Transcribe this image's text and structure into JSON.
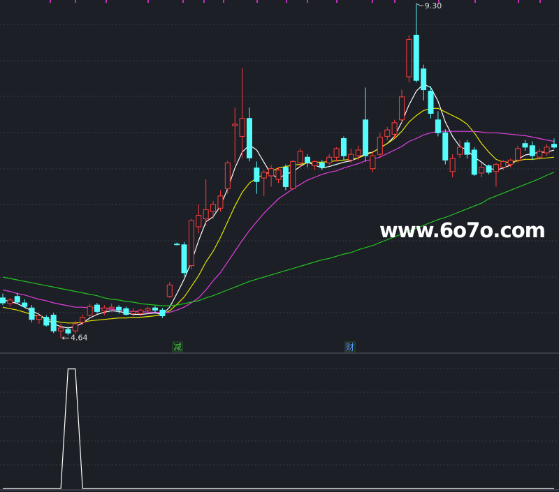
{
  "chart_data": [
    {
      "type": "candlestick",
      "watermark": "www.6o7o.com",
      "up_color": "#ff3c3c",
      "down_color": "#54fcfc",
      "ylim": [
        4.44,
        9.35
      ],
      "high_label": {
        "value": 9.3,
        "label": "9.30"
      },
      "low_label": 4.64,
      "signals": [
        {
          "label": "减",
          "color": "#3ccc3c"
        },
        {
          "label": "财",
          "color": "#5aa0ff"
        }
      ],
      "open": [
        5.2,
        5.12,
        5.22,
        5.13,
        5.06,
        4.9,
        4.93,
        4.96,
        4.74,
        4.76,
        4.74,
        4.86,
        4.96,
        5.1,
        5.02,
        5.05,
        5.07,
        5.05,
        4.98,
        4.98,
        5.03,
        5.06,
        5.03,
        5.22,
        5.95,
        5.94,
        5.65,
        6.19,
        6.3,
        6.4,
        6.45,
        6.72,
        7.6,
        7.45,
        7.7,
        7.01,
        6.87,
        6.9,
        6.85,
        7.02,
        6.72,
        7.08,
        7.16,
        7.04,
        7.08,
        7.08,
        7.16,
        7.42,
        7.12,
        7.18,
        7.68,
        7.0,
        7.2,
        7.45,
        7.48,
        7.68,
        8.28,
        8.86,
        8.39,
        8.08,
        7.68,
        7.5,
        6.96,
        7.2,
        7.36,
        7.26,
        6.94,
        7.04,
        6.96,
        7.02,
        7.06,
        7.12,
        7.35,
        7.32,
        7.16,
        7.22,
        7.34
      ],
      "high": [
        5.26,
        5.2,
        5.27,
        5.18,
        5.1,
        4.97,
        4.96,
        4.99,
        4.84,
        4.8,
        4.88,
        4.97,
        5.12,
        5.13,
        5.1,
        5.12,
        5.1,
        5.08,
        5.06,
        5.05,
        5.08,
        5.09,
        5.06,
        5.42,
        5.97,
        5.98,
        6.3,
        6.5,
        6.85,
        6.55,
        6.7,
        7.11,
        7.85,
        8.4,
        7.85,
        7.1,
        6.98,
        7.05,
        7.02,
        7.06,
        7.12,
        7.28,
        7.2,
        7.12,
        7.12,
        7.2,
        7.3,
        7.45,
        7.28,
        7.32,
        8.13,
        7.24,
        7.5,
        7.58,
        7.68,
        8.1,
        8.86,
        9.3,
        8.45,
        8.15,
        7.8,
        7.55,
        7.2,
        7.4,
        7.4,
        7.3,
        7.08,
        7.06,
        7.08,
        7.12,
        7.14,
        7.32,
        7.4,
        7.38,
        7.28,
        7.34,
        7.42
      ],
      "low": [
        5.1,
        5.08,
        5.12,
        5.06,
        4.86,
        4.84,
        4.8,
        4.71,
        4.64,
        4.68,
        4.7,
        4.82,
        4.92,
        4.98,
        4.96,
        5.0,
        4.98,
        4.95,
        4.94,
        4.94,
        4.98,
        4.98,
        4.92,
        5.2,
        5.93,
        5.5,
        5.6,
        6.1,
        6.2,
        6.3,
        6.4,
        6.65,
        7.08,
        7.15,
        7.1,
        6.65,
        6.62,
        6.75,
        6.8,
        6.7,
        6.7,
        7.02,
        7.02,
        6.98,
        6.98,
        7.05,
        7.1,
        7.12,
        7.08,
        7.12,
        7.1,
        6.95,
        7.15,
        7.4,
        7.42,
        7.62,
        8.2,
        8.2,
        7.95,
        7.7,
        7.45,
        7.06,
        6.88,
        7.15,
        7.14,
        6.9,
        6.88,
        6.92,
        6.75,
        6.98,
        7.02,
        7.08,
        7.25,
        7.12,
        7.12,
        7.18,
        7.28
      ],
      "close": [
        5.13,
        5.17,
        5.14,
        5.08,
        4.9,
        4.95,
        4.82,
        4.74,
        4.78,
        4.71,
        4.84,
        4.93,
        5.08,
        5.01,
        5.06,
        5.07,
        5.03,
        4.97,
        5.01,
        5.03,
        5.05,
        5.03,
        4.95,
        5.38,
        5.94,
        5.55,
        6.28,
        6.35,
        6.43,
        6.5,
        6.62,
        7.08,
        7.62,
        7.7,
        7.15,
        6.82,
        6.95,
        7.0,
        6.98,
        6.75,
        7.1,
        7.24,
        7.08,
        7.1,
        7.02,
        7.16,
        7.28,
        7.18,
        7.2,
        7.26,
        7.18,
        7.18,
        7.44,
        7.54,
        7.64,
        8.0,
        8.8,
        8.23,
        8.1,
        7.77,
        7.5,
        7.12,
        7.14,
        7.3,
        7.2,
        6.92,
        7.02,
        6.95,
        7.06,
        7.1,
        7.12,
        7.28,
        7.3,
        7.18,
        7.24,
        7.3,
        7.3
      ],
      "series": [
        {
          "color": "#ffffff",
          "values": [
            5.17,
            5.15,
            5.12,
            5.07,
            5.02,
            4.97,
            4.9,
            4.84,
            4.8,
            4.78,
            4.8,
            4.85,
            4.92,
            4.97,
            5.0,
            5.02,
            5.01,
            4.99,
            4.97,
            4.97,
            4.98,
            4.99,
            4.97,
            5.07,
            5.26,
            5.46,
            5.7,
            6.0,
            6.26,
            6.33,
            6.48,
            6.72,
            7.01,
            7.23,
            7.33,
            7.26,
            7.09,
            6.92,
            6.87,
            6.92,
            6.96,
            7.03,
            7.09,
            7.05,
            7.01,
            7.03,
            7.06,
            7.09,
            7.11,
            7.15,
            7.21,
            7.23,
            7.29,
            7.35,
            7.45,
            7.65,
            7.89,
            8.08,
            8.18,
            8.13,
            7.94,
            7.65,
            7.45,
            7.31,
            7.26,
            7.16,
            7.09,
            7.01,
            6.98,
            7.01,
            7.05,
            7.13,
            7.19,
            7.21,
            7.23,
            7.23,
            7.26
          ]
        },
        {
          "color": "#e6e600",
          "values": [
            5.07,
            5.05,
            5.03,
            5.0,
            4.97,
            4.94,
            4.91,
            4.88,
            4.86,
            4.85,
            4.85,
            4.86,
            4.88,
            4.89,
            4.9,
            4.91,
            4.92,
            4.92,
            4.93,
            4.93,
            4.94,
            4.95,
            4.97,
            5.02,
            5.11,
            5.21,
            5.36,
            5.51,
            5.7,
            5.85,
            6.04,
            6.26,
            6.48,
            6.67,
            6.8,
            6.87,
            6.92,
            6.96,
            7.01,
            7.03,
            7.05,
            7.06,
            7.08,
            7.09,
            7.09,
            7.1,
            7.11,
            7.12,
            7.13,
            7.15,
            7.19,
            7.23,
            7.29,
            7.35,
            7.42,
            7.52,
            7.65,
            7.74,
            7.81,
            7.84,
            7.84,
            7.79,
            7.74,
            7.69,
            7.62,
            7.5,
            7.35,
            7.23,
            7.13,
            7.09,
            7.09,
            7.11,
            7.13,
            7.13,
            7.14,
            7.15,
            7.16
          ]
        },
        {
          "color": "#e040e0",
          "values": [
            5.31,
            5.29,
            5.26,
            5.24,
            5.21,
            5.18,
            5.16,
            5.13,
            5.11,
            5.09,
            5.07,
            5.07,
            5.06,
            5.06,
            5.05,
            5.04,
            5.03,
            5.02,
            5.01,
            5.01,
            5.0,
            5.0,
            4.99,
            5.0,
            5.03,
            5.07,
            5.13,
            5.2,
            5.31,
            5.44,
            5.55,
            5.7,
            5.85,
            6.0,
            6.14,
            6.26,
            6.38,
            6.48,
            6.58,
            6.65,
            6.72,
            6.78,
            6.84,
            6.88,
            6.92,
            6.95,
            6.97,
            7.01,
            7.04,
            7.07,
            7.11,
            7.13,
            7.16,
            7.21,
            7.26,
            7.31,
            7.38,
            7.42,
            7.47,
            7.5,
            7.52,
            7.52,
            7.52,
            7.52,
            7.52,
            7.52,
            7.51,
            7.5,
            7.5,
            7.49,
            7.48,
            7.47,
            7.46,
            7.44,
            7.42,
            7.4,
            7.38
          ]
        },
        {
          "color": "#22c422",
          "values": [
            5.49,
            5.47,
            5.45,
            5.43,
            5.41,
            5.39,
            5.37,
            5.35,
            5.33,
            5.31,
            5.29,
            5.27,
            5.25,
            5.23,
            5.2,
            5.18,
            5.17,
            5.15,
            5.14,
            5.12,
            5.11,
            5.1,
            5.09,
            5.09,
            5.1,
            5.12,
            5.14,
            5.16,
            5.2,
            5.23,
            5.27,
            5.31,
            5.35,
            5.39,
            5.43,
            5.46,
            5.49,
            5.52,
            5.55,
            5.58,
            5.61,
            5.64,
            5.67,
            5.7,
            5.73,
            5.75,
            5.78,
            5.81,
            5.83,
            5.87,
            5.9,
            5.93,
            5.97,
            6.01,
            6.05,
            6.09,
            6.13,
            6.17,
            6.21,
            6.25,
            6.29,
            6.32,
            6.36,
            6.4,
            6.44,
            6.48,
            6.52,
            6.58,
            6.62,
            6.66,
            6.7,
            6.74,
            6.78,
            6.82,
            6.86,
            6.91,
            6.95
          ]
        }
      ]
    },
    {
      "type": "line",
      "ylim": [
        -0.03,
        1.12
      ],
      "series": [
        {
          "color": "#ffffff",
          "values": [
            0,
            0,
            0,
            0,
            0,
            0,
            0,
            0,
            0,
            1,
            1,
            0,
            0,
            0,
            0,
            0,
            0,
            0,
            0,
            0,
            0,
            0,
            0,
            0,
            0,
            0,
            0,
            0,
            0,
            0,
            0,
            0,
            0,
            0,
            0,
            0,
            0,
            0,
            0,
            0,
            0,
            0,
            0,
            0,
            0,
            0,
            0,
            0,
            0,
            0,
            0,
            0,
            0,
            0,
            0,
            0,
            0,
            0,
            0,
            0,
            0,
            0,
            0,
            0,
            0,
            0,
            0,
            0,
            0,
            0,
            0,
            0,
            0,
            0,
            0,
            0,
            0
          ]
        }
      ]
    }
  ]
}
